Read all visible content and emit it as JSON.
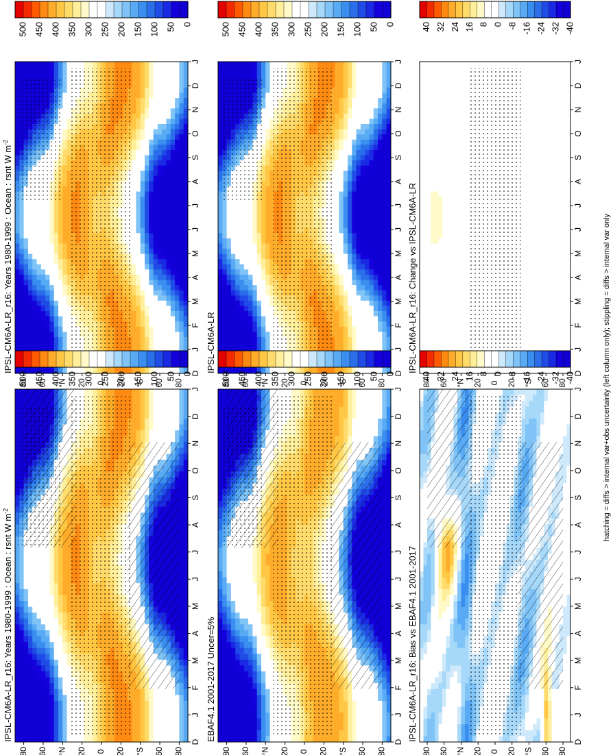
{
  "figure": {
    "footnote": "hatching = diffs > internal var+obs uncertainty (left column only); stippling = diffs > internal var only"
  },
  "scales": {
    "abs": {
      "labels": [
        "500",
        "450",
        "400",
        "350",
        "300",
        "250",
        "200",
        "150",
        "100",
        "50",
        "0"
      ],
      "colors": [
        "#e40000",
        "#f52a00",
        "#ff5a00",
        "#ff8a12",
        "#ffac2a",
        "#ffc743",
        "#ffdb6b",
        "#ffee9a",
        "#fffac8",
        "#ffffff",
        "#ffffff",
        "#cde9fb",
        "#a6d8fa",
        "#7fc3f7",
        "#59aaf4",
        "#3a8eef",
        "#2a6eea",
        "#1f4ce6",
        "#1a29e3",
        "#1400dc",
        "#1000d6"
      ]
    },
    "diff": {
      "labels": [
        "40",
        "32",
        "24",
        "16",
        "8",
        "0",
        "-8",
        "-16",
        "-24",
        "-32",
        "-40"
      ],
      "colors": [
        "#e40000",
        "#f52a00",
        "#ff5a00",
        "#ff8a12",
        "#ffac2a",
        "#ffc743",
        "#ffdb6b",
        "#ffee9a",
        "#fffac8",
        "#ffffff",
        "#ffffff",
        "#cde9fb",
        "#a6d8fa",
        "#7fc3f7",
        "#59aaf4",
        "#3a8eef",
        "#2a6eea",
        "#1f4ce6",
        "#1a29e3",
        "#1400dc",
        "#1000d6"
      ]
    }
  },
  "axes": {
    "months": [
      "D",
      "J",
      "F",
      "M",
      "A",
      "M",
      "J",
      "J",
      "A",
      "S",
      "O",
      "N",
      "D",
      "J"
    ],
    "lat_ticks": [
      "80",
      "60",
      "°N",
      "20",
      "0",
      "20",
      "°S",
      "60",
      "80"
    ]
  },
  "chart_data": [
    {
      "type": "heatmap",
      "id": "p1",
      "title": "IPSL-CM6A-LR_r16: Years 1980-1999 : Ocean : rsnt W m",
      "title_sup": "-2",
      "scale": "abs",
      "x": "month (D..J)",
      "y": "latitude 90N..90S",
      "hatch": true,
      "stipple": true
    },
    {
      "type": "heatmap",
      "id": "p2",
      "title": "EBAF4.1 2001-2017 Uncer=5%",
      "scale": "abs",
      "x": "month",
      "y": "latitude",
      "hatch": true,
      "stipple": true
    },
    {
      "type": "heatmap",
      "id": "p3",
      "title": "IPSL-CM6A-LR_r16: Bias vs EBAF4.1 2001-2017",
      "scale": "diff",
      "x": "month",
      "y": "latitude",
      "hatch": true,
      "stipple": true
    },
    {
      "type": "heatmap",
      "id": "p4",
      "title": "IPSL-CM6A-LR_r16: Years 1980-1999 : Ocean : rsnt W m",
      "title_sup": "-2",
      "scale": "abs",
      "x": "month",
      "y": "latitude",
      "hatch": false,
      "stipple": true
    },
    {
      "type": "heatmap",
      "id": "p5",
      "title": "IPSL-CM6A-LR",
      "scale": "abs",
      "x": "month",
      "y": "latitude",
      "hatch": false,
      "stipple": true
    },
    {
      "type": "heatmap",
      "id": "p6",
      "title": "IPSL-CM6A-LR_r16: Change vs IPSL-CM6A-LR",
      "scale": "diff",
      "x": "month",
      "y": "latitude",
      "hatch": false,
      "stipple": true
    }
  ]
}
